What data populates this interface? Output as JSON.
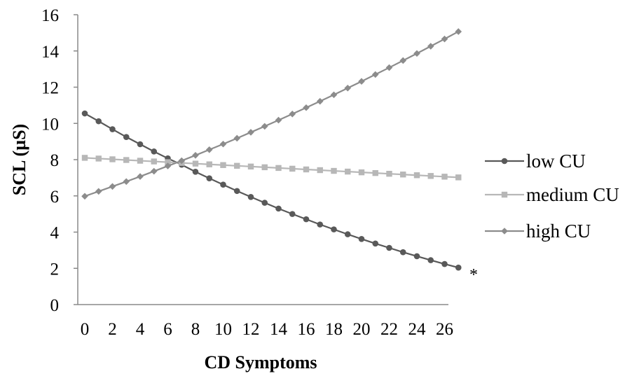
{
  "chart_data": {
    "type": "line",
    "xlabel": "CD Symptoms",
    "ylabel": "SCL (µS)",
    "x": [
      0,
      1,
      2,
      3,
      4,
      5,
      6,
      7,
      8,
      9,
      10,
      11,
      12,
      13,
      14,
      15,
      16,
      17,
      18,
      19,
      20,
      21,
      22,
      23,
      24,
      25,
      26,
      27
    ],
    "x_tick_labels": [
      "0",
      "2",
      "4",
      "6",
      "8",
      "10",
      "12",
      "14",
      "16",
      "18",
      "20",
      "22",
      "24",
      "26"
    ],
    "y_tick_labels": [
      "0",
      "2",
      "4",
      "6",
      "8",
      "10",
      "12",
      "14",
      "16"
    ],
    "ylim": [
      0,
      16
    ],
    "grid": false,
    "legend_position": "right",
    "annotation": "*",
    "series": [
      {
        "name": "low CU",
        "color": "#595959",
        "marker": "circle",
        "values": [
          10.55,
          10.12,
          9.68,
          9.25,
          8.85,
          8.45,
          8.07,
          7.72,
          7.33,
          6.97,
          6.62,
          6.27,
          5.94,
          5.62,
          5.3,
          5.0,
          4.71,
          4.42,
          4.15,
          3.88,
          3.62,
          3.37,
          3.13,
          2.89,
          2.67,
          2.45,
          2.24,
          2.04
        ]
      },
      {
        "name": "medium CU",
        "color": "#b7b7b7",
        "marker": "square",
        "values": [
          8.1,
          8.06,
          8.02,
          7.98,
          7.94,
          7.9,
          7.86,
          7.82,
          7.78,
          7.74,
          7.7,
          7.66,
          7.62,
          7.58,
          7.54,
          7.5,
          7.46,
          7.42,
          7.38,
          7.34,
          7.3,
          7.26,
          7.22,
          7.18,
          7.14,
          7.1,
          7.06,
          7.02
        ]
      },
      {
        "name": "high CU",
        "color": "#8c8c8c",
        "marker": "diamond",
        "values": [
          5.98,
          6.25,
          6.52,
          6.79,
          7.07,
          7.36,
          7.65,
          7.94,
          8.24,
          8.55,
          8.86,
          9.18,
          9.51,
          9.84,
          10.18,
          10.52,
          10.87,
          11.22,
          11.58,
          11.95,
          12.32,
          12.7,
          13.08,
          13.47,
          13.86,
          14.26,
          14.66,
          15.07
        ]
      }
    ]
  }
}
